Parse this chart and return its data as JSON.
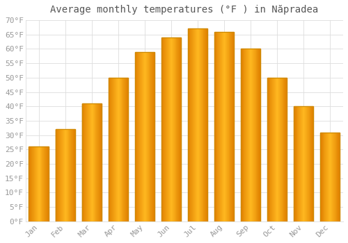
{
  "title": "Average monthly temperatures (°F ) in Năpradea",
  "months": [
    "Jan",
    "Feb",
    "Mar",
    "Apr",
    "May",
    "Jun",
    "Jul",
    "Aug",
    "Sep",
    "Oct",
    "Nov",
    "Dec"
  ],
  "values": [
    26,
    32,
    41,
    50,
    59,
    64,
    67,
    66,
    60,
    50,
    40,
    31
  ],
  "bar_color_center": "#FFB300",
  "bar_color_edge": "#E08000",
  "bar_border_color": "#B8860B",
  "background_color": "#FFFFFF",
  "grid_color": "#DDDDDD",
  "ylim": [
    0,
    70
  ],
  "yticks": [
    0,
    5,
    10,
    15,
    20,
    25,
    30,
    35,
    40,
    45,
    50,
    55,
    60,
    65,
    70
  ],
  "title_fontsize": 10,
  "tick_fontsize": 8,
  "tick_color": "#999999",
  "title_color": "#555555"
}
